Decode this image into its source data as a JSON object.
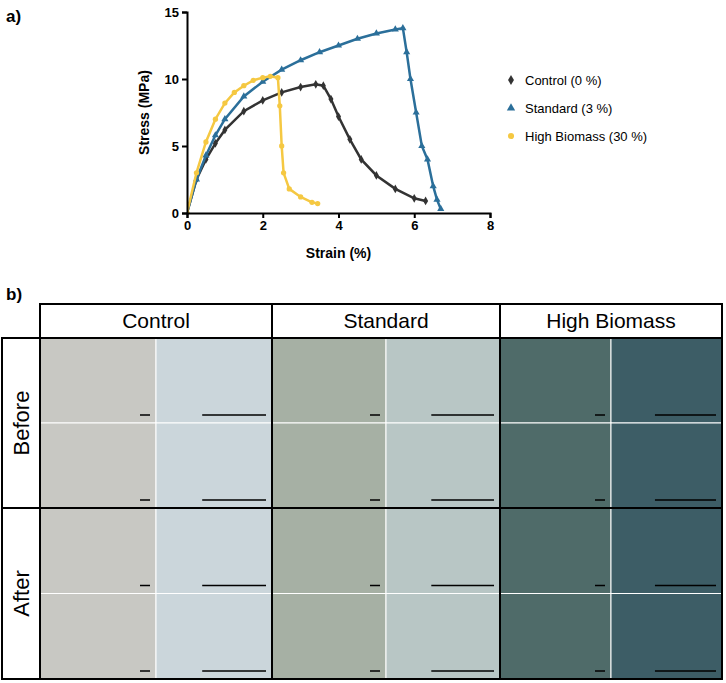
{
  "chart_data": {
    "type": "line",
    "x_label": "Strain (%)",
    "y_label": "Stress (MPa)",
    "xlim": [
      0,
      8
    ],
    "xticks": [
      0,
      2,
      4,
      6,
      8
    ],
    "ylim": [
      0,
      15
    ],
    "yticks": [
      0,
      5,
      10,
      15
    ],
    "grid": false,
    "legend": "right",
    "series": [
      {
        "name": "Control (0 %)",
        "color": "#333333",
        "marker": "diamond",
        "x": [
          0,
          0.25,
          0.5,
          0.75,
          1,
          1.5,
          2,
          2.5,
          3,
          3.4,
          3.6,
          3.8,
          4,
          4.3,
          4.6,
          5,
          5.5,
          6,
          6.3
        ],
        "values": [
          0,
          2.5,
          4,
          5.2,
          6.2,
          7.6,
          8.4,
          9,
          9.4,
          9.6,
          9.5,
          8.5,
          7.2,
          5.5,
          4,
          2.8,
          1.8,
          1.1,
          0.9
        ]
      },
      {
        "name": "Standard (3 %)",
        "color": "#2b6f9a",
        "marker": "triangle",
        "x": [
          0,
          0.25,
          0.5,
          0.75,
          1,
          1.5,
          2,
          2.5,
          3,
          3.5,
          4,
          4.5,
          5,
          5.5,
          5.7,
          5.8,
          5.9,
          6.05,
          6.2,
          6.35,
          6.5,
          6.6,
          6.7
        ],
        "values": [
          0,
          2.5,
          4.3,
          5.8,
          7,
          8.7,
          9.8,
          10.7,
          11.4,
          12,
          12.5,
          13,
          13.4,
          13.7,
          13.8,
          12,
          10,
          7.5,
          5,
          4,
          2,
          1,
          0.3
        ]
      },
      {
        "name": "High Biomass (30 %)",
        "color": "#f5c842",
        "marker": "circle",
        "x": [
          0,
          0.25,
          0.5,
          0.75,
          1,
          1.25,
          1.5,
          1.75,
          2,
          2.2,
          2.4,
          2.45,
          2.5,
          2.55,
          2.7,
          3,
          3.3,
          3.45
        ],
        "values": [
          0,
          3,
          5.3,
          7,
          8.2,
          9,
          9.5,
          9.9,
          10.1,
          10.2,
          10.1,
          8,
          5,
          3,
          1.8,
          1.2,
          0.8,
          0.7
        ]
      }
    ]
  },
  "panel_labels": [
    "a)",
    "b)"
  ],
  "image_grid": {
    "columns": [
      "Control",
      "Standard",
      "High Biomass"
    ],
    "rows": [
      "Before",
      "After"
    ]
  }
}
